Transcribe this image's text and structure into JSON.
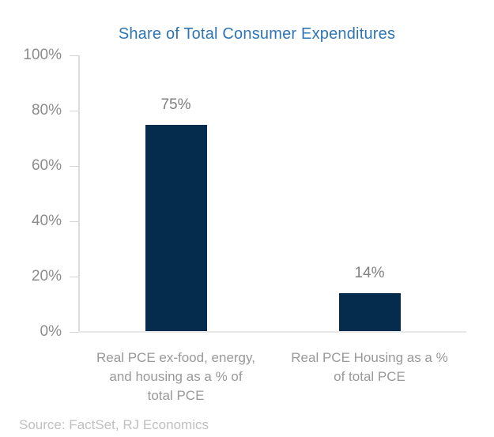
{
  "chart_data": {
    "type": "bar",
    "title": "Share of Total Consumer Expenditures",
    "categories": [
      "Real PCE ex-food, energy, and housing as a % of total PCE",
      "Real PCE Housing as a % of total PCE"
    ],
    "category_label_lines": [
      [
        "Real PCE ex-food, energy,",
        "and housing as a % of",
        "total PCE"
      ],
      [
        "Real PCE Housing as a %",
        "of total PCE"
      ]
    ],
    "values": [
      75,
      14
    ],
    "value_labels": [
      "75%",
      "14%"
    ],
    "xlabel": "",
    "ylabel": "",
    "ylim": [
      0,
      100
    ],
    "ytick_values": [
      100,
      80,
      60,
      40,
      20,
      0
    ],
    "ytick_labels": [
      "100%",
      "80%",
      "60%",
      "40%",
      "20%",
      "0%"
    ],
    "grid": false,
    "legend": false
  },
  "source_note": "Source: FactSet, RJ Economics",
  "colors": {
    "bar": "#052C4D",
    "title": "#2E75B5",
    "tick_label": "#8C8C8C",
    "value_label": "#7F7F7F",
    "category_label": "#999999",
    "source_text": "#C0C0C0",
    "axis_line": "#DCDCDC",
    "tick_mark": "#D4D4D4",
    "baseline": "#E8E8E8",
    "background": "#FFFFFF"
  }
}
